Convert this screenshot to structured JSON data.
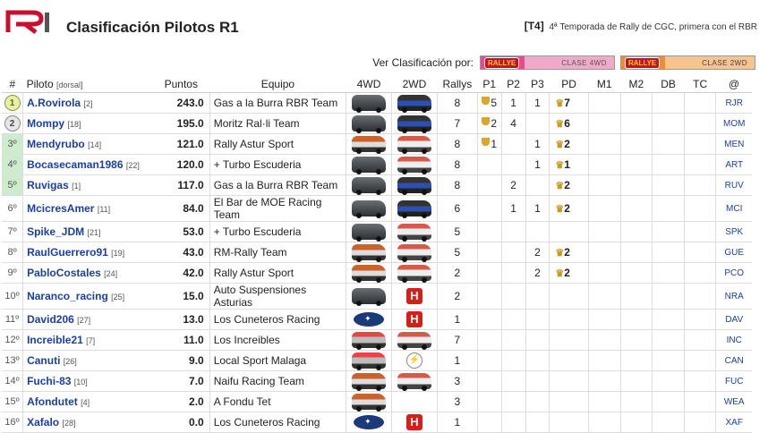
{
  "header": {
    "logo_text": "R1",
    "title": "Clasificación Pilotos R1",
    "season_tag": "[T4]",
    "season_text": "4ª Temporada de Rally de CGC, primera con el RBR"
  },
  "filter": {
    "label": "Ver Clasificación por:",
    "buttons": [
      {
        "brand": "RALLYE",
        "label": "CLASE 4WD",
        "color": "#e94a8a"
      },
      {
        "brand": "RALLYE",
        "label": "CLASE 2WD",
        "color": "#f08c32"
      }
    ]
  },
  "columns": [
    "#",
    "Piloto",
    "[dorsal]",
    "Puntos",
    "Equipo",
    "4WD",
    "2WD",
    "Rallys",
    "P1",
    "P2",
    "P3",
    "PD",
    "M1",
    "M2",
    "DB",
    "TC",
    "@"
  ],
  "rows": [
    {
      "pos": "1",
      "name": "A.Rovirola",
      "dorsal": "[2]",
      "pts": "243.0",
      "team": "Gas a la Burra RBR Team",
      "car4": "dark",
      "car2": "blue",
      "rallys": "8",
      "p1": "5",
      "p2": "1",
      "p3": "1",
      "pd": "7",
      "code": "RJR"
    },
    {
      "pos": "2",
      "name": "Mompy",
      "dorsal": "[18]",
      "pts": "195.0",
      "team": "Moritz Ral·li Team",
      "car4": "dark",
      "car2": "blue",
      "rallys": "7",
      "p1": "2",
      "p2": "4",
      "p3": "",
      "pd": "6",
      "code": "MOM"
    },
    {
      "pos": "3º",
      "name": "Mendyrubo",
      "dorsal": "[14]",
      "pts": "121.0",
      "team": "Rally Astur Sport",
      "car4": "orange",
      "car2": "white",
      "rallys": "8",
      "p1": "1",
      "p2": "",
      "p3": "1",
      "pd": "2",
      "code": "MEN"
    },
    {
      "pos": "4º",
      "name": "Bocasecaman1986",
      "dorsal": "[22]",
      "pts": "120.0",
      "team": "+ Turbo Escuderia",
      "car4": "dark",
      "car2": "white",
      "rallys": "8",
      "p1": "",
      "p2": "",
      "p3": "1",
      "pd": "1",
      "code": "ART"
    },
    {
      "pos": "5º",
      "name": "Ruvigas",
      "dorsal": "[1]",
      "pts": "117.0",
      "team": "Gas a la Burra RBR Team",
      "car4": "dark",
      "car2": "blue",
      "rallys": "8",
      "p1": "",
      "p2": "2",
      "p3": "",
      "pd": "2",
      "code": "RUV"
    },
    {
      "pos": "6º",
      "name": "McicresAmer",
      "dorsal": "[11]",
      "pts": "84.0",
      "team": "El Bar de MOE Racing Team",
      "car4": "dark",
      "car2": "blue",
      "rallys": "6",
      "p1": "",
      "p2": "1",
      "p3": "1",
      "pd": "2",
      "code": "MCI"
    },
    {
      "pos": "7º",
      "name": "Spike_JDM",
      "dorsal": "[21]",
      "pts": "53.0",
      "team": "+ Turbo Escuderia",
      "car4": "dark",
      "car2": "white",
      "rallys": "5",
      "p1": "",
      "p2": "",
      "p3": "",
      "pd": "",
      "code": "SPK"
    },
    {
      "pos": "8º",
      "name": "RaulGuerrero91",
      "dorsal": "[19]",
      "pts": "43.0",
      "team": "RM-Rally Team",
      "car4": "orange",
      "car2": "white",
      "rallys": "5",
      "p1": "",
      "p2": "",
      "p3": "2",
      "pd": "2",
      "code": "GUE"
    },
    {
      "pos": "9º",
      "name": "PabloCostales",
      "dorsal": "[24]",
      "pts": "42.0",
      "team": "Rally Astur Sport",
      "car4": "orange",
      "car2": "white",
      "rallys": "2",
      "p1": "",
      "p2": "",
      "p3": "2",
      "pd": "2",
      "code": "PCO"
    },
    {
      "pos": "10º",
      "name": "Naranco_racing",
      "dorsal": "[25]",
      "pts": "15.0",
      "team": "Auto Suspensiones Asturias",
      "car4": "dark",
      "car2": "honda",
      "rallys": "2",
      "p1": "",
      "p2": "",
      "p3": "",
      "pd": "",
      "code": "NRA"
    },
    {
      "pos": "11º",
      "name": "David206",
      "dorsal": "[27]",
      "pts": "13.0",
      "team": "Los Cuneteros Racing",
      "car4": "subaru",
      "car2": "honda",
      "rallys": "1",
      "p1": "",
      "p2": "",
      "p3": "",
      "pd": "",
      "code": "DAV"
    },
    {
      "pos": "12º",
      "name": "Increible21",
      "dorsal": "[7]",
      "pts": "11.0",
      "team": "Los Increibles",
      "car4": "redtop",
      "car2": "white",
      "rallys": "7",
      "p1": "",
      "p2": "",
      "p3": "",
      "pd": "",
      "code": "INC"
    },
    {
      "pos": "13º",
      "name": "Canuti",
      "dorsal": "[26]",
      "pts": "9.0",
      "team": "Local Sport Malaga",
      "car4": "redtop",
      "car2": "opel",
      "rallys": "1",
      "p1": "",
      "p2": "",
      "p3": "",
      "pd": "",
      "code": "CAN"
    },
    {
      "pos": "14º",
      "name": "Fuchi-83",
      "dorsal": "[10]",
      "pts": "7.0",
      "team": "Naifu Racing Team",
      "car4": "orange",
      "car2": "white",
      "rallys": "3",
      "p1": "",
      "p2": "",
      "p3": "",
      "pd": "",
      "code": "FUC"
    },
    {
      "pos": "15º",
      "name": "Afondutet",
      "dorsal": "[4]",
      "pts": "2.0",
      "team": "A Fondu Tet",
      "car4": "orange",
      "car2": "",
      "rallys": "3",
      "p1": "",
      "p2": "",
      "p3": "",
      "pd": "",
      "code": "WEA"
    },
    {
      "pos": "16º",
      "name": "Xafalo",
      "dorsal": "[28]",
      "pts": "0.0",
      "team": "Los Cuneteros Racing",
      "car4": "subaru",
      "car2": "honda",
      "rallys": "1",
      "p1": "",
      "p2": "",
      "p3": "",
      "pd": "",
      "code": "XAF"
    }
  ]
}
